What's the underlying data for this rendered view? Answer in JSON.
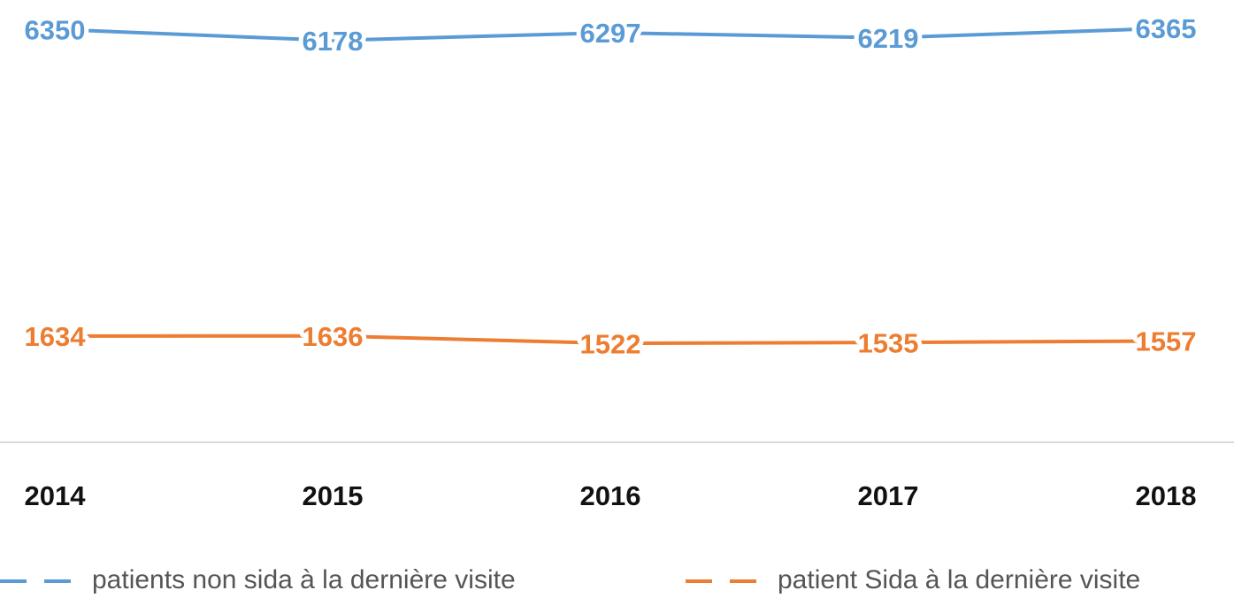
{
  "chart_data": {
    "type": "line",
    "categories": [
      "2014",
      "2015",
      "2016",
      "2017",
      "2018"
    ],
    "series": [
      {
        "name": "patients non sida à la dernière visite",
        "color": "#5b9bd5",
        "values": [
          6350,
          6178,
          6297,
          6219,
          6365
        ]
      },
      {
        "name": "patient Sida à la dernière visite",
        "color": "#ed7d31",
        "values": [
          1634,
          1636,
          1522,
          1535,
          1557
        ]
      }
    ],
    "ylim": [
      0,
      6800
    ],
    "legend": "bottom",
    "data_labels": true
  }
}
